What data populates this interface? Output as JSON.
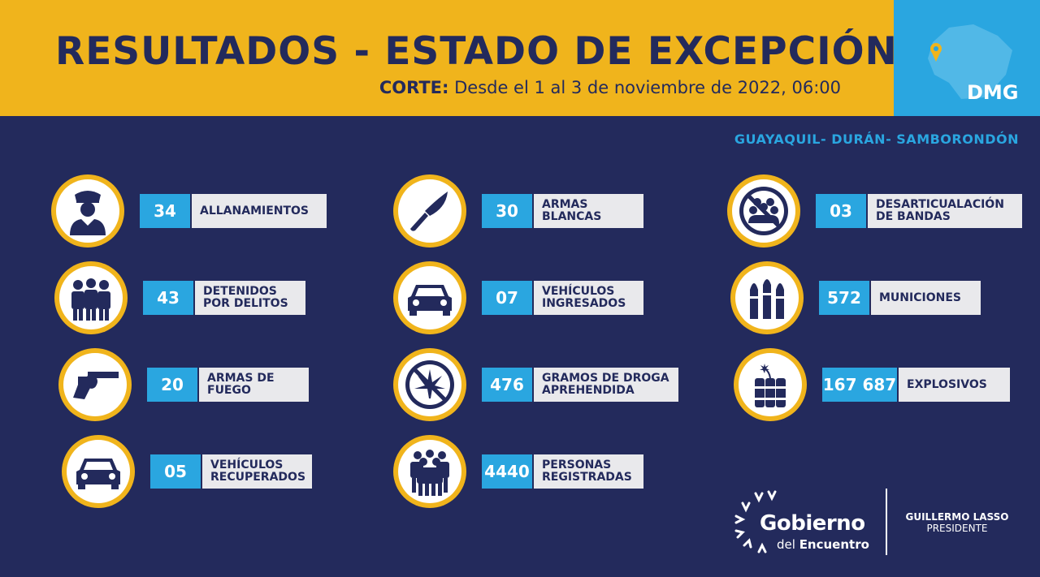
{
  "header": {
    "title": "RESULTADOS - ESTADO DE EXCEPCIÓN",
    "cut_label": "CORTE:",
    "cut_text": " Desde el 1 al 3 de noviembre de 2022, 06:00",
    "badge": "DMG"
  },
  "cities": "GUAYAQUIL- DURÁN- SAMBORONDÓN",
  "stats": {
    "allanamientos": {
      "value": "34",
      "label": "ALLANAMIENTOS",
      "icon": "police-officer-icon"
    },
    "detenidos": {
      "value": "43",
      "label": "DETENIDOS\nPOR DELITOS",
      "icon": "arrested-people-icon"
    },
    "armas_fuego": {
      "value": "20",
      "label": "ARMAS DE\nFUEGO",
      "icon": "revolver-icon"
    },
    "vehiculos_recuperados": {
      "value": "05",
      "label": "VEHÍCULOS\nRECUPERADOS",
      "icon": "car-icon"
    },
    "armas_blancas": {
      "value": "30",
      "label": "ARMAS\nBLANCAS",
      "icon": "knife-icon"
    },
    "vehiculos_ingresados": {
      "value": "07",
      "label": "VEHÍCULOS\nINGRESADOS",
      "icon": "car-icon"
    },
    "droga": {
      "value": "476",
      "label": "GRAMOS DE DROGA\nAPREHENDIDA",
      "icon": "no-drugs-icon"
    },
    "personas": {
      "value": "4440",
      "label": "PERSONAS\nREGISTRADAS",
      "icon": "crowd-icon"
    },
    "bandas": {
      "value": "03",
      "label": "DESARTICUALACIÓN\nDE BANDAS",
      "icon": "no-gangs-icon"
    },
    "municiones": {
      "value": "572",
      "label": "MUNICIONES",
      "icon": "bullets-icon"
    },
    "explosivos": {
      "value": "167 687",
      "label": "EXPLOSIVOS",
      "icon": "dynamite-icon"
    }
  },
  "footer": {
    "logo_word": "Gobierno",
    "logo_sub_a": "del ",
    "logo_sub_b": "Encuentro",
    "president_name": "GUILLERMO LASSO",
    "president_role": "PRESIDENTE"
  },
  "colors": {
    "navy": "#232a5c",
    "yellow": "#f0b41c",
    "blue": "#2aa6e0",
    "light": "#e9e9ec"
  }
}
